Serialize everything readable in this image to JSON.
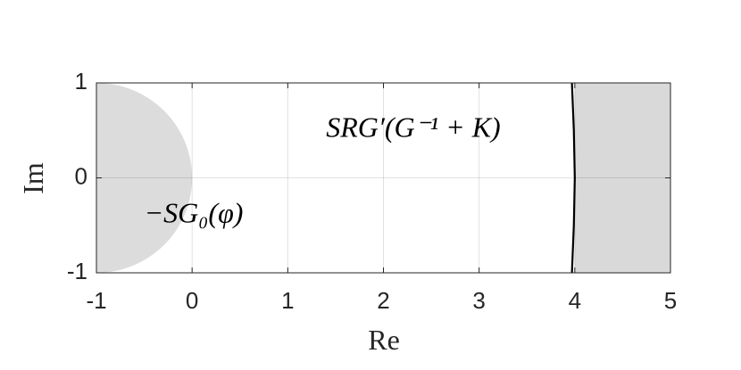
{
  "chart_data": {
    "type": "region",
    "xlabel": "Re",
    "ylabel": "Im",
    "xlim": [
      -1,
      5
    ],
    "ylim": [
      -1,
      1
    ],
    "xticks": [
      -1,
      0,
      1,
      2,
      3,
      4,
      5
    ],
    "yticks": [
      -1,
      0,
      1
    ],
    "grid": true,
    "half_disk": {
      "center": [
        -1,
        0
      ],
      "radius": 1,
      "color": "#dcdcdc"
    },
    "band": {
      "x": [
        4,
        5
      ],
      "color": "#d9d9d9"
    },
    "curve": {
      "x": [
        3.97,
        3.99,
        4.0,
        3.99,
        3.97
      ],
      "y": [
        -1,
        -0.5,
        0,
        0.5,
        1
      ],
      "color": "#000000"
    },
    "annotations": [
      {
        "text": "SRG′(G⁻¹ + K)",
        "x": 1.4,
        "y": 0.5
      },
      {
        "text": "−SG₀(φ)",
        "x": -0.5,
        "y": -0.4
      }
    ]
  }
}
